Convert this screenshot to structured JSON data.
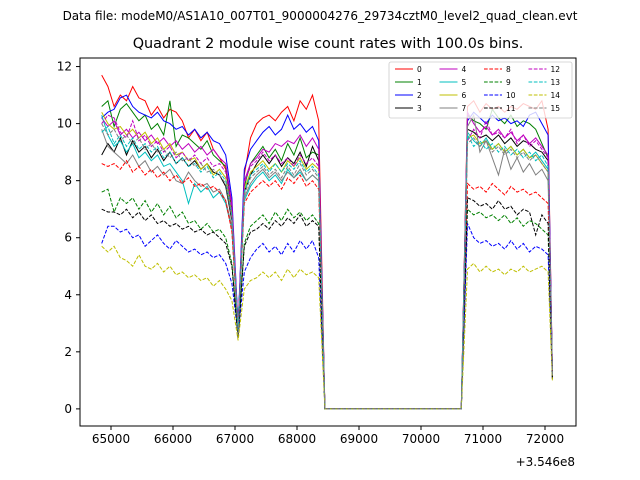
{
  "chart_data": {
    "type": "line",
    "supertitle": "Data file: modeM0/AS1A10_007T01_9000004276_29734cztM0_level2_quad_clean.evt",
    "title": "Quadrant 2 module wise count rates with 100.0s bins.",
    "xlabel": "",
    "ylabel": "",
    "x_offset_label": "+3.546e8",
    "xlim": [
      64500,
      72500
    ],
    "ylim": [
      -0.6,
      12.3
    ],
    "x_ticks": [
      65000,
      66000,
      67000,
      68000,
      69000,
      70000,
      71000,
      72000
    ],
    "x_tick_labels": [
      "65000",
      "66000",
      "67000",
      "68000",
      "69000",
      "70000",
      "71000",
      "72000"
    ],
    "y_ticks": [
      0,
      2,
      4,
      6,
      8,
      10,
      12
    ],
    "y_tick_labels": [
      "0",
      "2",
      "4",
      "6",
      "8",
      "10",
      "12"
    ],
    "grid": false,
    "legend_placement": "top-right",
    "x_segments": {
      "orbit1": {
        "start": 64850,
        "step": 100,
        "count": 22
      },
      "dip": [
        67050
      ],
      "orbit2": {
        "start": 67150,
        "step": 100,
        "count": 13
      },
      "gap": [
        68450,
        70650
      ],
      "orbit3": {
        "start": 70750,
        "step": 100,
        "count": 14
      },
      "end": [
        72120
      ]
    },
    "series": [
      {
        "name": "0",
        "color": "#ff0000",
        "dash": "solid",
        "orbit1": [
          11.7,
          11.3,
          10.6,
          11.0,
          10.8,
          11.3,
          10.9,
          10.8,
          10.3,
          10.6,
          10.2,
          10.5,
          10.4,
          10.1,
          9.5,
          9.8,
          9.4,
          9.7,
          9.1,
          8.8,
          8.4,
          7.1
        ],
        "dip": 2.8,
        "orbit2": [
          8.2,
          9.5,
          10.0,
          10.2,
          10.3,
          10.1,
          10.4,
          10.6,
          10.1,
          10.8,
          10.5,
          11.0,
          10.1
        ],
        "orbit3": [
          10.6,
          10.8,
          10.4,
          10.7,
          10.5,
          10.6,
          10.4,
          10.6,
          10.5,
          10.7,
          10.6,
          10.5,
          10.8,
          9.8
        ],
        "end": 1.3
      },
      {
        "name": "1",
        "color": "#008000",
        "dash": "solid",
        "orbit1": [
          10.6,
          10.8,
          9.9,
          10.5,
          10.7,
          10.4,
          10.1,
          10.3,
          9.8,
          10.0,
          9.6,
          10.8,
          9.2,
          9.6,
          9.5,
          9.3,
          9.1,
          9.4,
          8.9,
          8.7,
          8.5,
          6.9
        ],
        "dip": 2.9,
        "orbit2": [
          7.8,
          8.6,
          8.9,
          9.2,
          8.8,
          9.1,
          8.7,
          9.3,
          8.9,
          9.5,
          8.8,
          9.0,
          8.9
        ],
        "orbit3": [
          10.3,
          10.1,
          10.0,
          9.8,
          10.5,
          10.2,
          10.0,
          10.3,
          9.9,
          10.1,
          10.0,
          9.8,
          9.3,
          8.8
        ],
        "end": 1.3
      },
      {
        "name": "2",
        "color": "#0000ff",
        "dash": "solid",
        "orbit1": [
          10.2,
          10.4,
          10.5,
          10.9,
          11.0,
          10.6,
          10.4,
          10.3,
          10.2,
          10.4,
          10.1,
          10.0,
          9.8,
          9.9,
          9.6,
          9.8,
          9.5,
          9.7,
          9.4,
          9.3,
          8.9,
          7.4
        ],
        "dip": 2.9,
        "orbit2": [
          8.4,
          9.1,
          9.4,
          9.7,
          9.9,
          9.6,
          9.8,
          10.3,
          9.8,
          10.0,
          9.7,
          9.9,
          9.4
        ],
        "orbit3": [
          10.1,
          10.4,
          10.2,
          10.0,
          10.3,
          10.1,
          10.2,
          10.0,
          10.1,
          9.9,
          10.3,
          10.4,
          10.0,
          9.6
        ],
        "end": 1.2
      },
      {
        "name": "3",
        "color": "#000000",
        "dash": "solid",
        "orbit1": [
          8.9,
          9.3,
          9.0,
          9.5,
          8.9,
          9.4,
          9.0,
          9.2,
          8.8,
          9.1,
          8.7,
          9.0,
          8.6,
          8.8,
          8.5,
          8.7,
          8.4,
          8.6,
          8.3,
          8.2,
          7.8,
          6.6
        ],
        "dip": 2.7,
        "orbit2": [
          7.6,
          8.2,
          8.6,
          8.9,
          8.6,
          8.9,
          8.5,
          8.8,
          8.6,
          9.0,
          8.5,
          9.2,
          8.7
        ],
        "orbit3": [
          9.8,
          9.7,
          9.5,
          9.6,
          9.4,
          9.6,
          9.3,
          9.5,
          9.2,
          9.4,
          9.3,
          9.1,
          9.0,
          8.7
        ],
        "end": 1.2
      },
      {
        "name": "4",
        "color": "#bf00bf",
        "dash": "solid",
        "orbit1": [
          10.2,
          9.9,
          10.1,
          9.6,
          9.8,
          9.5,
          9.7,
          9.4,
          9.6,
          9.3,
          9.5,
          9.2,
          9.4,
          9.1,
          9.3,
          9.0,
          9.2,
          8.9,
          9.1,
          8.8,
          8.6,
          7.2
        ],
        "dip": 2.8,
        "orbit2": [
          8.0,
          8.6,
          8.8,
          9.1,
          9.0,
          9.3,
          9.2,
          9.4,
          9.3,
          9.6,
          9.2,
          9.5,
          9.1
        ],
        "orbit3": [
          10.4,
          10.0,
          9.7,
          9.9,
          9.6,
          9.8,
          9.5,
          9.7,
          9.4,
          9.6,
          9.3,
          9.5,
          9.2,
          8.9
        ],
        "end": 1.3
      },
      {
        "name": "5",
        "color": "#00bfbf",
        "dash": "solid",
        "orbit1": [
          10.3,
          9.6,
          9.2,
          9.4,
          9.0,
          9.3,
          8.8,
          9.0,
          8.7,
          8.9,
          8.5,
          8.6,
          8.3,
          8.0,
          7.2,
          7.9,
          7.6,
          7.8,
          7.4,
          7.6,
          7.2,
          6.3
        ],
        "dip": 2.6,
        "orbit2": [
          7.3,
          7.8,
          8.1,
          8.3,
          8.0,
          8.2,
          7.9,
          8.4,
          8.1,
          8.3,
          8.0,
          8.2,
          8.0
        ],
        "orbit3": [
          9.7,
          9.4,
          9.2,
          9.5,
          9.1,
          9.3,
          9.0,
          9.2,
          8.9,
          9.1,
          8.8,
          9.0,
          8.7,
          8.4
        ],
        "end": 1.2
      },
      {
        "name": "6",
        "color": "#bfbf00",
        "dash": "solid",
        "orbit1": [
          10.4,
          10.0,
          9.8,
          9.9,
          9.6,
          9.8,
          9.5,
          9.7,
          9.3,
          9.5,
          9.1,
          9.3,
          8.9,
          9.0,
          8.7,
          8.8,
          8.4,
          8.6,
          8.2,
          8.4,
          8.1,
          6.8
        ],
        "dip": 2.7,
        "orbit2": [
          7.7,
          8.3,
          8.5,
          8.7,
          8.4,
          8.6,
          8.3,
          8.7,
          8.5,
          8.8,
          8.4,
          8.6,
          8.4
        ],
        "orbit3": [
          9.5,
          9.6,
          9.3,
          9.4,
          9.1,
          9.3,
          9.0,
          9.2,
          8.9,
          9.1,
          8.8,
          8.9,
          8.6,
          8.3
        ],
        "end": 1.2
      },
      {
        "name": "7",
        "color": "#808080",
        "dash": "solid",
        "orbit1": [
          9.8,
          9.2,
          9.0,
          8.8,
          8.6,
          8.9,
          8.5,
          8.7,
          8.3,
          8.5,
          8.2,
          8.4,
          8.0,
          7.9,
          8.3,
          8.0,
          7.8,
          7.9,
          7.6,
          7.7,
          7.3,
          6.4
        ],
        "dip": 2.6,
        "orbit2": [
          7.4,
          7.9,
          8.2,
          8.4,
          8.1,
          8.3,
          8.0,
          8.3,
          8.1,
          8.4,
          8.0,
          8.2,
          8.0
        ],
        "orbit3": [
          9.9,
          10.3,
          9.0,
          9.4,
          8.8,
          8.2,
          9.1,
          8.4,
          8.8,
          8.3,
          8.6,
          8.2,
          8.4,
          8.0
        ],
        "end": 1.1
      },
      {
        "name": "8",
        "color": "#ff0000",
        "dash": "dashed",
        "orbit1": [
          8.6,
          8.5,
          8.6,
          8.4,
          8.7,
          8.3,
          8.5,
          8.2,
          8.4,
          8.1,
          8.3,
          8.0,
          8.2,
          7.9,
          8.1,
          7.8,
          7.9,
          7.7,
          7.8,
          7.6,
          7.3,
          6.2
        ],
        "dip": 2.7,
        "orbit2": [
          7.2,
          7.6,
          7.8,
          8.0,
          7.8,
          8.0,
          7.7,
          8.1,
          7.9,
          8.2,
          7.8,
          8.0,
          7.7
        ],
        "orbit3": [
          7.9,
          7.7,
          7.8,
          7.6,
          7.9,
          7.7,
          7.5,
          7.8,
          7.6,
          7.7,
          7.5,
          7.6,
          7.4,
          7.2
        ],
        "end": 1.1
      },
      {
        "name": "9",
        "color": "#008000",
        "dash": "dashed",
        "orbit1": [
          7.6,
          7.7,
          6.9,
          7.4,
          7.2,
          7.4,
          7.0,
          7.3,
          6.9,
          7.2,
          6.8,
          7.1,
          6.7,
          6.9,
          6.5,
          6.6,
          6.3,
          6.5,
          6.2,
          6.3,
          6.0,
          5.1
        ],
        "dip": 2.5,
        "orbit2": [
          5.8,
          6.4,
          6.6,
          6.8,
          6.5,
          6.9,
          6.6,
          7.0,
          6.7,
          6.9,
          6.6,
          6.8,
          6.5
        ],
        "orbit3": [
          7.0,
          6.8,
          6.9,
          6.7,
          6.8,
          6.6,
          6.8,
          6.5,
          6.7,
          6.4,
          6.6,
          6.5,
          6.3,
          6.1
        ],
        "end": 1.1
      },
      {
        "name": "10",
        "color": "#0000ff",
        "dash": "dashed",
        "orbit1": [
          5.8,
          6.4,
          6.4,
          6.2,
          6.3,
          6.0,
          6.1,
          5.7,
          5.9,
          6.1,
          5.8,
          5.6,
          5.9,
          5.7,
          5.5,
          5.6,
          5.4,
          5.5,
          5.3,
          5.4,
          5.1,
          4.4
        ],
        "dip": 2.6,
        "orbit2": [
          4.8,
          5.3,
          5.6,
          5.8,
          5.5,
          5.7,
          5.4,
          5.8,
          5.5,
          5.9,
          5.6,
          5.9,
          5.3
        ],
        "orbit3": [
          6.5,
          6.0,
          5.8,
          5.9,
          5.7,
          5.8,
          5.6,
          5.9,
          5.6,
          5.8,
          5.5,
          5.7,
          5.6,
          5.4
        ],
        "end": 1.1
      },
      {
        "name": "11",
        "color": "#000000",
        "dash": "dashed",
        "orbit1": [
          7.0,
          6.9,
          6.9,
          6.8,
          7.0,
          6.7,
          6.9,
          6.6,
          6.8,
          6.5,
          6.6,
          6.4,
          6.5,
          6.3,
          6.4,
          6.2,
          6.3,
          6.1,
          6.2,
          6.0,
          5.8,
          5.0
        ],
        "dip": 2.5,
        "orbit2": [
          5.7,
          6.2,
          6.3,
          6.5,
          6.3,
          6.6,
          6.4,
          6.7,
          6.5,
          6.8,
          6.4,
          6.6,
          6.4
        ],
        "orbit3": [
          7.4,
          7.3,
          7.1,
          7.2,
          7.0,
          7.3,
          7.0,
          7.1,
          6.8,
          7.0,
          6.9,
          6.1,
          6.8,
          6.5
        ],
        "end": 1.0
      },
      {
        "name": "12",
        "color": "#bf00bf",
        "dash": "dashed",
        "orbit1": [
          10.0,
          10.3,
          10.2,
          9.7,
          9.5,
          10.1,
          9.4,
          9.6,
          9.2,
          9.4,
          9.0,
          9.2,
          8.8,
          9.0,
          8.7,
          8.9,
          8.6,
          8.8,
          8.5,
          8.6,
          8.3,
          7.0
        ],
        "dip": 2.8,
        "orbit2": [
          7.9,
          8.5,
          8.7,
          9.0,
          8.7,
          8.9,
          8.6,
          8.8,
          8.5,
          8.9,
          8.6,
          8.8,
          8.5
        ],
        "orbit3": [
          9.4,
          9.8,
          9.5,
          10.1,
          9.6,
          9.7,
          9.5,
          9.8,
          9.3,
          9.6,
          9.2,
          9.4,
          9.1,
          8.8
        ],
        "end": 1.2
      },
      {
        "name": "13",
        "color": "#00bfbf",
        "dash": "dashed",
        "orbit1": [
          9.7,
          9.9,
          9.3,
          9.6,
          9.2,
          9.5,
          9.1,
          9.3,
          9.0,
          9.2,
          8.8,
          9.0,
          8.6,
          8.8,
          8.5,
          8.6,
          8.3,
          8.5,
          8.1,
          8.3,
          8.0,
          6.8
        ],
        "dip": 2.7,
        "orbit2": [
          7.6,
          8.2,
          8.4,
          8.6,
          8.3,
          8.6,
          8.3,
          8.6,
          8.4,
          8.7,
          8.3,
          8.5,
          8.2
        ],
        "orbit3": [
          9.6,
          9.2,
          9.4,
          9.1,
          9.3,
          9.0,
          9.2,
          8.9,
          9.1,
          8.8,
          9.0,
          8.7,
          8.9,
          8.5
        ],
        "end": 1.2
      },
      {
        "name": "14",
        "color": "#bfbf00",
        "dash": "dashed",
        "orbit1": [
          5.7,
          5.5,
          5.7,
          5.3,
          5.2,
          5.0,
          5.4,
          5.0,
          4.9,
          5.1,
          4.8,
          5.0,
          4.7,
          4.8,
          4.6,
          4.7,
          4.5,
          4.6,
          4.3,
          4.5,
          4.2,
          3.8
        ],
        "dip": 2.4,
        "orbit2": [
          4.2,
          4.5,
          4.6,
          4.8,
          4.6,
          4.8,
          4.5,
          4.9,
          4.6,
          4.9,
          4.7,
          4.8,
          4.6
        ],
        "orbit3": [
          4.9,
          5.1,
          4.8,
          5.0,
          4.8,
          4.9,
          4.7,
          4.9,
          4.8,
          5.0,
          4.8,
          4.9,
          5.0,
          4.8
        ],
        "end": 1.0
      },
      {
        "name": "15",
        "color": "#808080",
        "dash": "dashed",
        "orbit1": [
          10.0,
          9.6,
          9.8,
          9.4,
          9.6,
          9.3,
          9.5,
          9.1,
          9.3,
          9.0,
          9.1,
          8.8,
          9.0,
          8.7,
          8.8,
          8.5,
          8.6,
          8.3,
          8.4,
          8.2,
          7.9,
          6.7
        ],
        "dip": 2.6,
        "orbit2": [
          7.5,
          8.1,
          8.3,
          8.5,
          8.2,
          8.4,
          8.1,
          8.5,
          8.2,
          8.6,
          8.2,
          8.4,
          8.1
        ],
        "orbit3": [
          9.3,
          9.5,
          9.2,
          9.4,
          9.0,
          9.2,
          8.9,
          9.1,
          8.8,
          9.0,
          8.7,
          8.9,
          8.6,
          8.3
        ],
        "end": 1.2
      }
    ]
  }
}
